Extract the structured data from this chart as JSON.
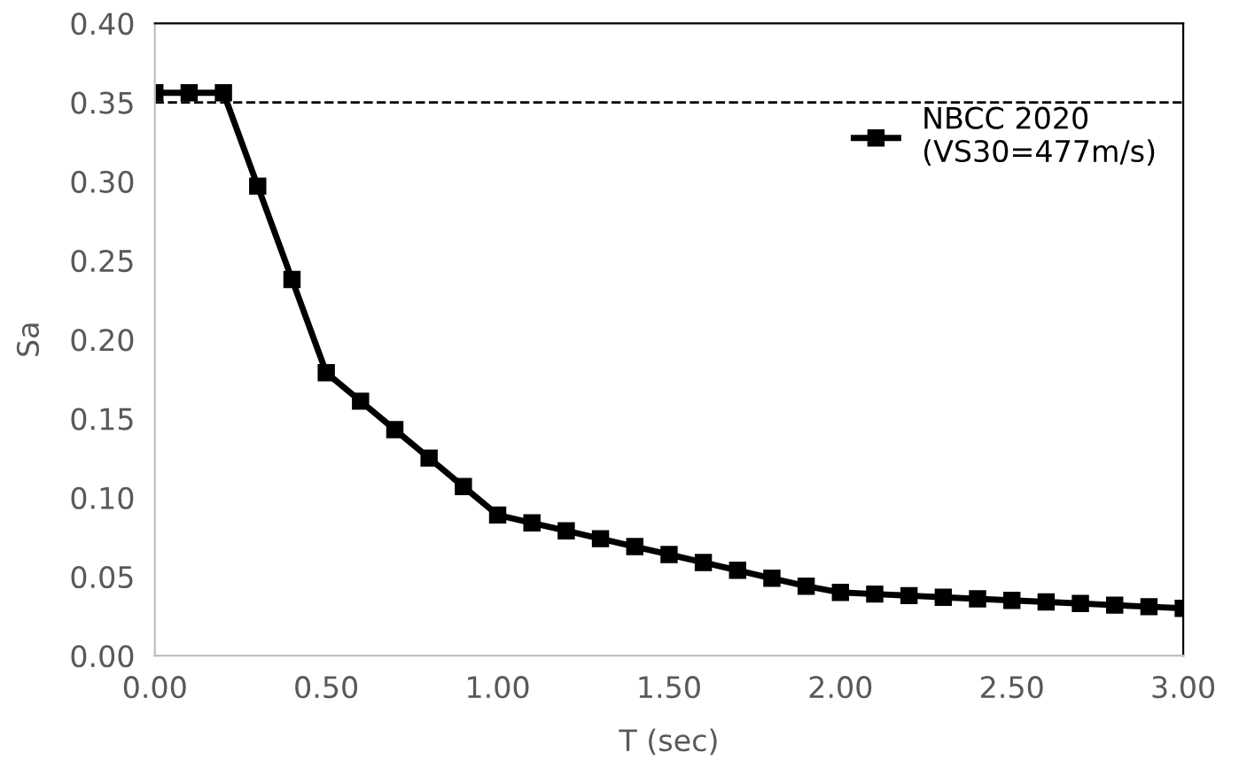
{
  "chart_data": {
    "type": "line",
    "xlabel": "T (sec)",
    "ylabel": "Sa",
    "x": [
      0,
      0.1,
      0.2,
      0.3,
      0.4,
      0.5,
      0.6,
      0.7,
      0.8,
      0.9,
      1.0,
      1.1,
      1.2,
      1.3,
      1.4,
      1.5,
      1.6,
      1.7,
      1.8,
      1.9,
      2.0,
      2.1,
      2.2,
      2.3,
      2.4,
      2.5,
      2.6,
      2.7,
      2.8,
      2.9,
      3.0
    ],
    "series": [
      {
        "name": "NBCC 2020\n(VS30=477m/s)",
        "color": "#000000",
        "values": [
          0.356,
          0.356,
          0.356,
          0.297,
          0.238,
          0.179,
          0.161,
          0.143,
          0.125,
          0.107,
          0.089,
          0.084,
          0.079,
          0.074,
          0.069,
          0.064,
          0.059,
          0.054,
          0.049,
          0.044,
          0.04,
          0.039,
          0.038,
          0.037,
          0.036,
          0.035,
          0.034,
          0.033,
          0.032,
          0.031,
          0.03
        ]
      }
    ],
    "xlim": [
      0,
      3
    ],
    "xticks": [
      {
        "value": 0,
        "label": "0.00"
      },
      {
        "value": 0.5,
        "label": "0.50"
      },
      {
        "value": 1,
        "label": "1.00"
      },
      {
        "value": 1.5,
        "label": "1.50"
      },
      {
        "value": 2,
        "label": "2.00"
      },
      {
        "value": 2.5,
        "label": "2.50"
      },
      {
        "value": 3,
        "label": "3.00"
      }
    ],
    "ylim": [
      0,
      0.4
    ],
    "yticks": [
      {
        "value": 0,
        "label": "0.00"
      },
      {
        "value": 0.05,
        "label": "0.05"
      },
      {
        "value": 0.1,
        "label": "0.10"
      },
      {
        "value": 0.15,
        "label": "0.15"
      },
      {
        "value": 0.2,
        "label": "0.20"
      },
      {
        "value": 0.25,
        "label": "0.25"
      },
      {
        "value": 0.3,
        "label": "0.30"
      },
      {
        "value": 0.35,
        "label": "0.35"
      },
      {
        "value": 0.4,
        "label": "0.40"
      }
    ],
    "ref_lines": [
      {
        "axis": "y",
        "value": 0.35,
        "color": "#000000",
        "line_style": "dashed"
      }
    ],
    "marker": "square",
    "line_style": "solid",
    "legend": "right",
    "grid": false
  }
}
